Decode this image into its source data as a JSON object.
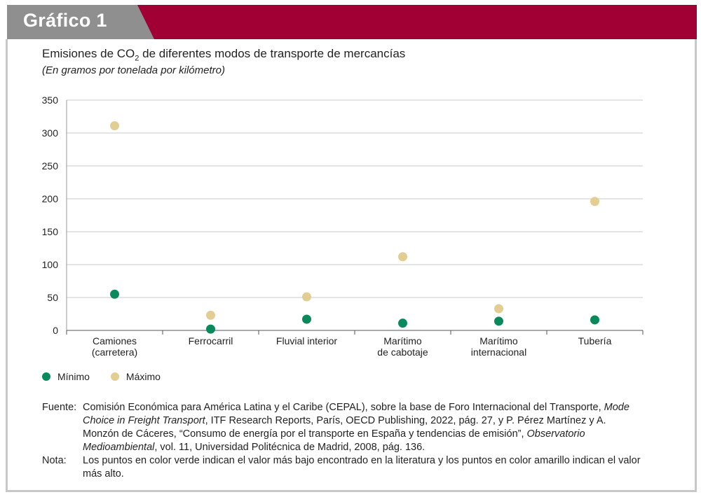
{
  "header": {
    "label": "Gráfico 1"
  },
  "title": {
    "prefix": "Emisiones de CO",
    "sub": "2",
    "suffix": " de diferentes modos de transporte de mercancías"
  },
  "subtitle": "(En gramos por tonelada por kilómetro)",
  "colors": {
    "header_band": "#a10034",
    "header_tab": "#8f8f8f",
    "minimo": "#0a8a5c",
    "maximo": "#e2cd92",
    "grid": "#c8c8c8"
  },
  "chart_data": {
    "type": "scatter",
    "categories": [
      [
        "Camiones",
        "(carretera)"
      ],
      [
        "Ferrocarril"
      ],
      [
        "Fluvial interior"
      ],
      [
        "Marítimo",
        "de cabotaje"
      ],
      [
        "Marítimo",
        "internacional"
      ],
      [
        "Tubería"
      ]
    ],
    "yticks": [
      "0",
      "50",
      "100",
      "150",
      "200",
      "250",
      "300",
      "350"
    ],
    "ylim": [
      0,
      350
    ],
    "grid": true,
    "series": [
      {
        "name": "Mínimo",
        "color": "#0a8a5c",
        "values": [
          55,
          2,
          17,
          11,
          14,
          16
        ]
      },
      {
        "name": "Máximo",
        "color": "#e2cd92",
        "values": [
          311,
          23,
          51,
          112,
          33,
          196
        ]
      }
    ],
    "legend": "bottom-left"
  },
  "notes": {
    "source_label": "Fuente",
    "source_parts": [
      {
        "t": "Comisión Económica para América Latina y el Caribe (CEPAL), sobre la base de Foro Internacional del Transporte, ",
        "i": false
      },
      {
        "t": "Mode Choice in Freight Transport",
        "i": true
      },
      {
        "t": ", ITF Research Reports, París, OECD Publishing, 2022, pág. 27, y P. Pérez Martínez y A. Monzón de Cáceres, “Consumo de energía por el transporte en España y tendencias de emisión”, ",
        "i": false
      },
      {
        "t": "Observatorio Medioambiental",
        "i": true
      },
      {
        "t": ", vol. 11, Universidad Politécnica de Madrid, 2008, pág. 136.",
        "i": false
      }
    ],
    "note_label": "Nota",
    "note_text": "Los puntos en color verde indican el valor más bajo encontrado en la literatura y los puntos en color amarillo indican el valor más alto."
  }
}
